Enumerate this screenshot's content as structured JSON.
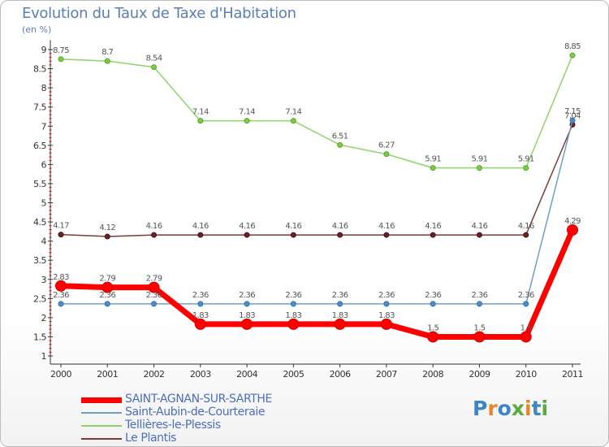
{
  "title": "Evolution du Taux de Taxe d'Habitation",
  "unit_label": "(en %)",
  "logo_text": "Proxiti",
  "logo_colors": [
    "#3a86c8",
    "#e8862a",
    "#3a86c8",
    "#5aaa3c",
    "#e8862a",
    "#3a86c8",
    "#5aaa3c"
  ],
  "chart_data": {
    "type": "line",
    "x": [
      "2000",
      "2001",
      "2002",
      "2003",
      "2004",
      "2005",
      "2006",
      "2007",
      "2008",
      "2009",
      "2010",
      "2011"
    ],
    "ylim": [
      0.75,
      9.25
    ],
    "yticks": [
      "1",
      "1.5",
      "2",
      "2.5",
      "3",
      "3.5",
      "4",
      "4.5",
      "5",
      "5.5",
      "6",
      "6.5",
      "7",
      "7.5",
      "8",
      "8.5",
      "9"
    ],
    "grid": false,
    "legend_placement": "bottom-left",
    "series": [
      {
        "name": "SAINT-AGNAN-SUR-SARTHE",
        "color": "#ff0000",
        "values": [
          2.83,
          2.79,
          2.79,
          1.83,
          1.83,
          1.83,
          1.83,
          1.83,
          1.5,
          1.5,
          1.5,
          4.29
        ],
        "labels": [
          "2.83",
          "2.79",
          "2.79",
          "1.83",
          "1.83",
          "1.83",
          "1.83",
          "1.83",
          "1.5",
          "1.5",
          "1.5",
          "4.29"
        ]
      },
      {
        "name": "Saint-Aubin-de-Courteraie",
        "color": "#6f9fc8",
        "values": [
          2.36,
          2.36,
          2.36,
          2.36,
          2.36,
          2.36,
          2.36,
          2.36,
          2.36,
          2.36,
          2.36,
          7.15
        ],
        "labels": [
          "2.36",
          "2.36",
          "2.36",
          "2.36",
          "2.36",
          "2.36",
          "2.36",
          "2.36",
          "2.36",
          "2.36",
          "2.36",
          "7.15"
        ]
      },
      {
        "name": "Tellières-le-Plessis",
        "color": "#8fd46a",
        "values": [
          8.75,
          8.7,
          8.54,
          7.14,
          7.14,
          7.14,
          6.51,
          6.27,
          5.91,
          5.91,
          5.91,
          8.85
        ],
        "labels": [
          "8.75",
          "8.7",
          "8.54",
          "7.14",
          "7.14",
          "7.14",
          "6.51",
          "6.27",
          "5.91",
          "5.91",
          "5.91",
          "8.85"
        ]
      },
      {
        "name": "Le Plantis",
        "color": "#7b3a3a",
        "values": [
          4.17,
          4.12,
          4.16,
          4.16,
          4.16,
          4.16,
          4.16,
          4.16,
          4.16,
          4.16,
          4.16,
          7.04
        ],
        "labels": [
          "4.17",
          "4.12",
          "4.16",
          "4.16",
          "4.16",
          "4.16",
          "4.16",
          "4.16",
          "4.16",
          "4.16",
          "4.16",
          "7.04"
        ]
      }
    ]
  }
}
